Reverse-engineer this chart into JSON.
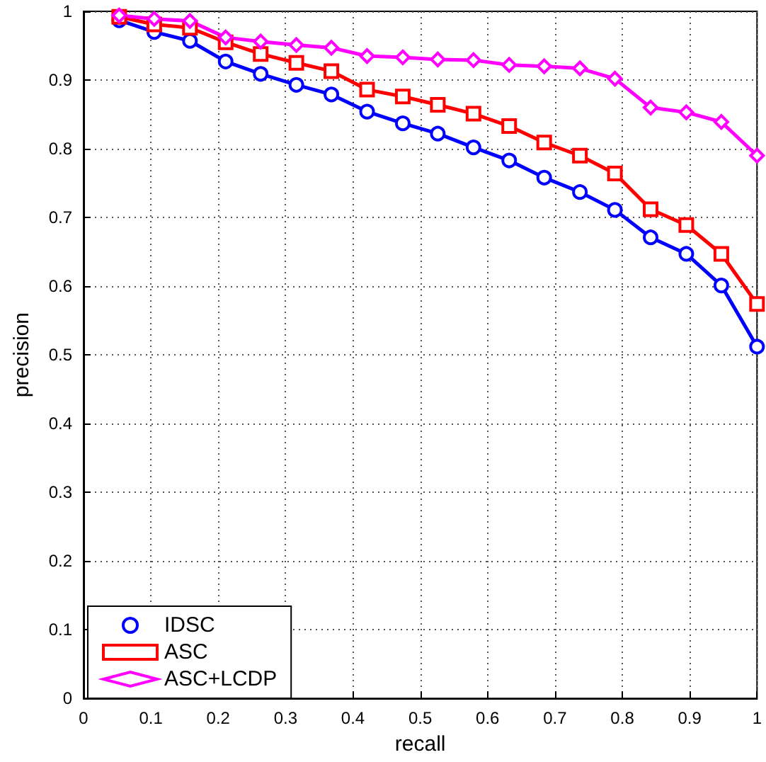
{
  "chart_data": {
    "type": "line",
    "xlabel": "recall",
    "ylabel": "precision",
    "x": [
      0.053,
      0.105,
      0.158,
      0.211,
      0.263,
      0.316,
      0.368,
      0.421,
      0.474,
      0.526,
      0.579,
      0.632,
      0.684,
      0.737,
      0.789,
      0.842,
      0.895,
      0.947,
      1
    ],
    "series": [
      {
        "name": "IDSC",
        "color": "#0000ff",
        "marker": "circle",
        "values": [
          0.987,
          0.97,
          0.957,
          0.927,
          0.909,
          0.893,
          0.879,
          0.854,
          0.837,
          0.822,
          0.802,
          0.783,
          0.758,
          0.737,
          0.711,
          0.671,
          0.647,
          0.601,
          0.512
        ]
      },
      {
        "name": "ASC",
        "color": "#ff0000",
        "marker": "square",
        "values": [
          0.992,
          0.981,
          0.976,
          0.955,
          0.938,
          0.925,
          0.913,
          0.886,
          0.876,
          0.864,
          0.851,
          0.833,
          0.809,
          0.79,
          0.764,
          0.712,
          0.689,
          0.647,
          0.574
        ]
      },
      {
        "name": "ASC+LCDP",
        "color": "#ff00ff",
        "marker": "diamond",
        "values": [
          0.994,
          0.989,
          0.986,
          0.962,
          0.956,
          0.951,
          0.947,
          0.935,
          0.933,
          0.93,
          0.929,
          0.922,
          0.92,
          0.917,
          0.902,
          0.86,
          0.853,
          0.839,
          0.79
        ]
      }
    ],
    "xlim": [
      0,
      1
    ],
    "xticks": [
      0,
      0.1,
      0.2,
      0.3,
      0.4,
      0.5,
      0.6,
      0.7,
      0.8,
      0.9,
      1
    ],
    "ylim": [
      0,
      1
    ],
    "yticks": [
      0,
      0.1,
      0.2,
      0.3,
      0.4,
      0.5,
      0.6,
      0.7,
      0.8,
      0.9,
      1
    ],
    "grid": true,
    "legend": "bottom left",
    "line_style": "solid"
  }
}
